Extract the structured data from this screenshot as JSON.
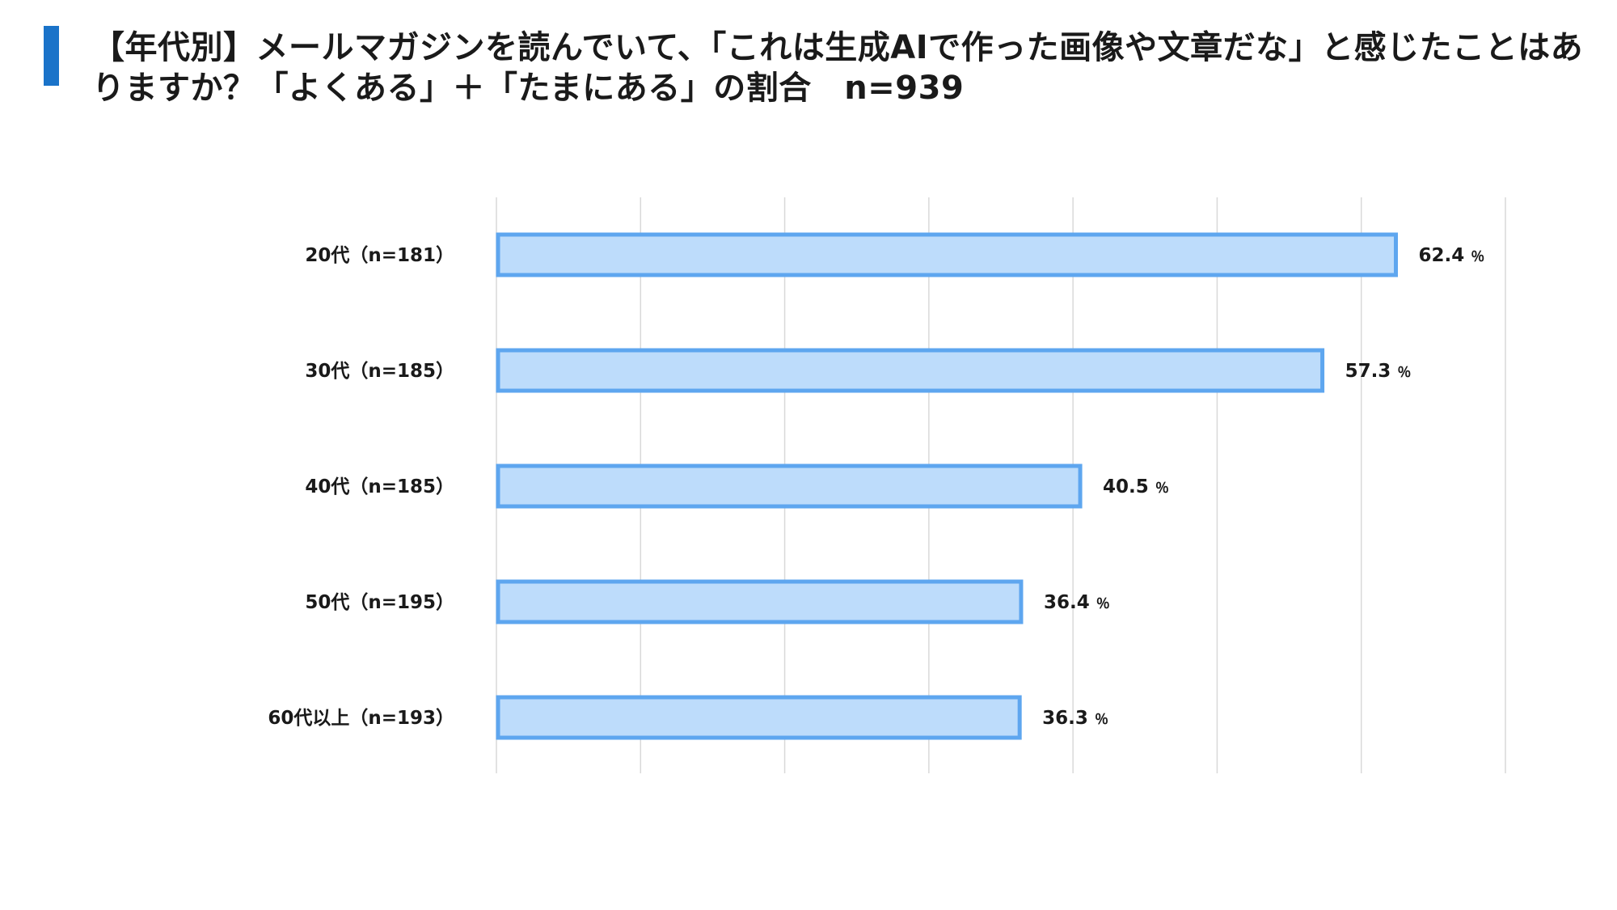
{
  "title": "【年代別】メールマガジンを読んでいて、「これは生成AIで作った画像や文章だな」と感じたことはありますか？「よくある」＋「たまにある」の割合　n=939",
  "colors": {
    "accent": "#1a73c9",
    "bar_fill": "#bddcfb",
    "bar_stroke": "#5ea6ef",
    "grid": "#d9d9d9"
  },
  "chart_data": {
    "type": "bar",
    "orientation": "horizontal",
    "categories": [
      "20代（n=181）",
      "30代（n=185）",
      "40代（n=185）",
      "50代（n=195）",
      "60代以上（n=193）"
    ],
    "values": [
      62.4,
      57.3,
      40.5,
      36.4,
      36.3
    ],
    "value_suffix": "％",
    "xlim": [
      0,
      70
    ],
    "grid": true,
    "legend": "none"
  }
}
